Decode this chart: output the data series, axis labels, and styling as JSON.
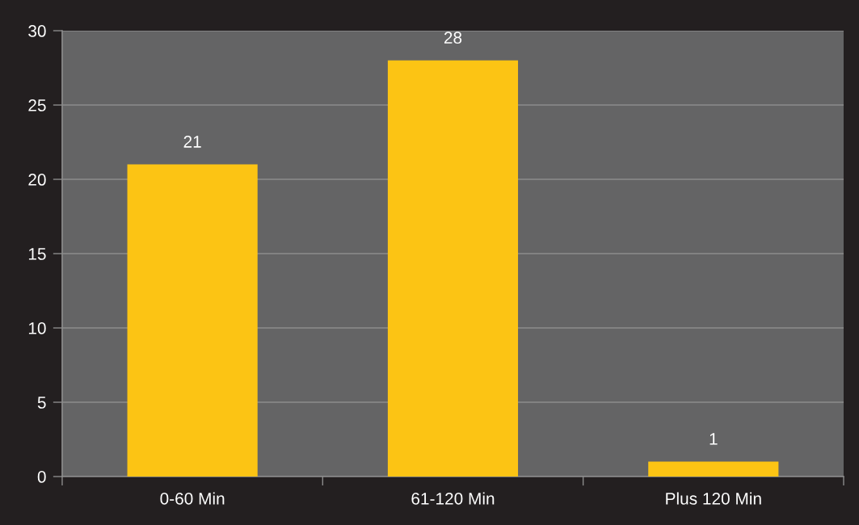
{
  "chart_data": {
    "type": "bar",
    "categories": [
      "0-60 Min",
      "61-120 Min",
      "Plus 120 Min"
    ],
    "values": [
      21,
      28,
      1
    ],
    "color": "#fcc414",
    "ylim": [
      0,
      30
    ],
    "yticks": [
      0,
      5,
      10,
      15,
      20,
      25,
      30
    ],
    "grid": "y",
    "data_labels": true
  }
}
